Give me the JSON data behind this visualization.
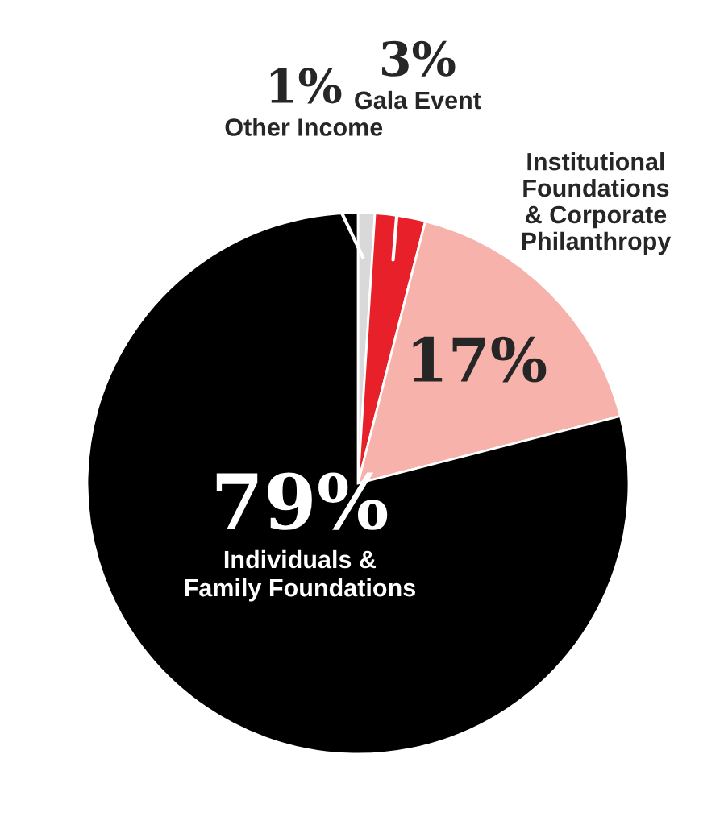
{
  "chart_data": {
    "type": "pie",
    "categories": [
      "Other Income",
      "Gala Event",
      "Institutional\nFoundations\n& Corporate\nPhilanthropy",
      "Individuals &\nFamily Foundations"
    ],
    "values": [
      1,
      3,
      17,
      79
    ],
    "value_labels": [
      "1%",
      "3%",
      "17%",
      "79%"
    ],
    "colors": [
      "#d9d9d9",
      "#e8202a",
      "#f7b3ab",
      "#000000"
    ]
  }
}
